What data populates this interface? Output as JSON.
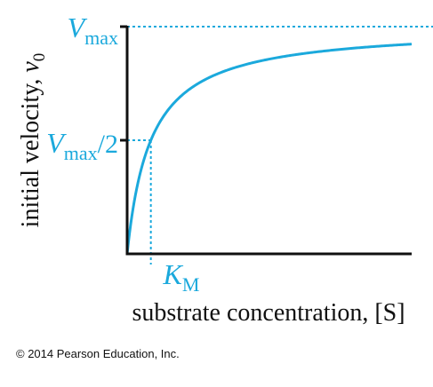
{
  "chart_data": {
    "type": "line",
    "title": "",
    "xlabel": "substrate concentration, [S]",
    "ylabel": {
      "main": "initial velocity, ",
      "var": "v",
      "sub": "0"
    },
    "annotations": {
      "vmax": {
        "symbol": "V",
        "sub": "max"
      },
      "half_vmax": {
        "symbol": "V",
        "sub": "max",
        "suffix": "/2"
      },
      "km": {
        "symbol": "K",
        "sub": "M"
      }
    },
    "parameters": {
      "Vmax": 1.0,
      "Km": 1.0
    },
    "xlim": [
      0,
      12
    ],
    "ylim": [
      0,
      1.0
    ],
    "series": [
      {
        "x": [
          0,
          0.1,
          0.25,
          0.5,
          0.75,
          1,
          1.5,
          2,
          3,
          4,
          5,
          6,
          7,
          8,
          9,
          10,
          11,
          12
        ],
        "y": [
          0,
          0.0909,
          0.2,
          0.3333,
          0.4286,
          0.5,
          0.6,
          0.6667,
          0.75,
          0.8,
          0.8333,
          0.8571,
          0.875,
          0.8889,
          0.9,
          0.9091,
          0.9167,
          0.9231
        ]
      }
    ],
    "grid": false,
    "colors": {
      "curve": "#1ba9dc",
      "axis": "#111111",
      "text": "#111111",
      "accent": "#1ba9dc"
    }
  },
  "footer": {
    "copyright": "© 2014 Pearson Education, Inc."
  }
}
